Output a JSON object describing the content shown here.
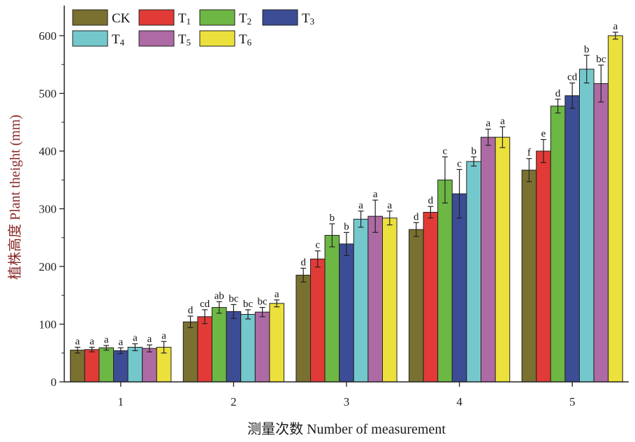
{
  "chart_data": {
    "type": "bar",
    "xlabel": "测量次数 Number of measurement",
    "ylabel": "植株高度 Plant theight (mm)",
    "categories": [
      "1",
      "2",
      "3",
      "4",
      "5"
    ],
    "ylim": [
      0,
      640
    ],
    "yticks": [
      0,
      100,
      200,
      300,
      400,
      500,
      600
    ],
    "grid": false,
    "legend_position": "top-left",
    "series": [
      {
        "name": "CK",
        "legend_main": "CK",
        "legend_sub": "",
        "color": "#7a7030",
        "values": [
          55,
          104,
          185,
          264,
          367
        ],
        "errors": [
          5,
          10,
          12,
          12,
          20
        ],
        "labels": [
          "a",
          "d",
          "d",
          "d",
          "f"
        ]
      },
      {
        "name": "T1",
        "legend_main": "T",
        "legend_sub": "1",
        "color": "#e23a36",
        "values": [
          56,
          113,
          213,
          294,
          400
        ],
        "errors": [
          4,
          12,
          14,
          10,
          20
        ],
        "labels": [
          "a",
          "cd",
          "c",
          "d",
          "e"
        ]
      },
      {
        "name": "T2",
        "legend_main": "T",
        "legend_sub": "2",
        "color": "#6db744",
        "values": [
          59,
          129,
          254,
          350,
          478
        ],
        "errors": [
          4,
          10,
          20,
          40,
          12
        ],
        "labels": [
          "a",
          "ab",
          "b",
          "c",
          "d"
        ]
      },
      {
        "name": "T3",
        "legend_main": "T",
        "legend_sub": "3",
        "color": "#3c4c95",
        "values": [
          54,
          122,
          239,
          326,
          496
        ],
        "errors": [
          5,
          12,
          20,
          42,
          22
        ],
        "labels": [
          "a",
          "bc",
          "b",
          "c",
          "cd"
        ]
      },
      {
        "name": "T4",
        "legend_main": "T",
        "legend_sub": "4",
        "color": "#74c8cc",
        "values": [
          60,
          117,
          282,
          382,
          542
        ],
        "errors": [
          6,
          8,
          14,
          8,
          24
        ],
        "labels": [
          "a",
          "bc",
          "a",
          "b",
          "b"
        ]
      },
      {
        "name": "T5",
        "legend_main": "T",
        "legend_sub": "5",
        "color": "#ad6aa4",
        "values": [
          58,
          121,
          287,
          424,
          517
        ],
        "errors": [
          6,
          8,
          28,
          14,
          32
        ],
        "labels": [
          "a",
          "bc",
          "a",
          "a",
          "bc"
        ]
      },
      {
        "name": "T6",
        "legend_main": "T",
        "legend_sub": "6",
        "color": "#ece03c",
        "values": [
          60,
          136,
          284,
          424,
          600
        ],
        "errors": [
          10,
          6,
          12,
          18,
          6
        ],
        "labels": [
          "a",
          "a",
          "a",
          "a",
          "a"
        ]
      }
    ]
  }
}
